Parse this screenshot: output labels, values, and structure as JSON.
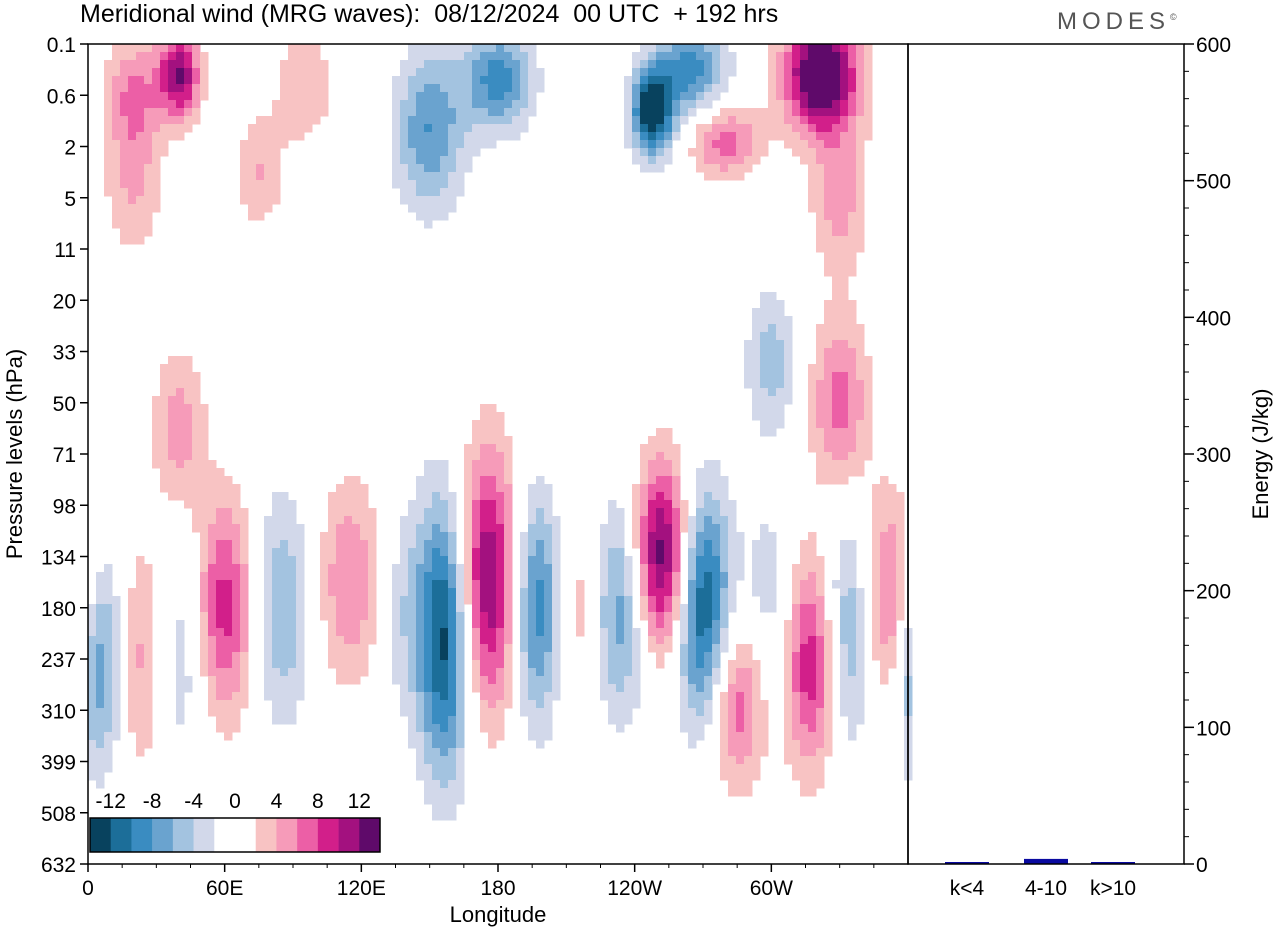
{
  "title": "Meridional wind (MRG waves):  08/12/2024  00 UTC  + 192 hrs",
  "logo": "MODES",
  "chart_data": [
    {
      "type": "heatmap",
      "xlabel": "Longitude",
      "ylabel": "Pressure levels (hPa)",
      "x_ticks": [
        "0",
        "60E",
        "120E",
        "180",
        "120W",
        "60W"
      ],
      "x_tick_longitudes": [
        0,
        60,
        120,
        180,
        240,
        300
      ],
      "xlim": [
        0,
        360
      ],
      "y_ticks": [
        "0.1",
        "0.6",
        "2",
        "5",
        "11",
        "20",
        "33",
        "50",
        "71",
        "98",
        "134",
        "180",
        "237",
        "310",
        "399",
        "508",
        "632"
      ],
      "colorbar": {
        "labels": [
          "-12",
          "-8",
          "-4",
          "0",
          "4",
          "8",
          "12"
        ],
        "colors": [
          "#08425e",
          "#1c6e99",
          "#3a8cc1",
          "#6aa3cf",
          "#a3c3e0",
          "#d2d8ea",
          "#ffffff",
          "#ffffff",
          "#f8c3c3",
          "#f69bb9",
          "#ec5fa6",
          "#d21f8a",
          "#a3117f",
          "#5f0a6a"
        ]
      },
      "features": [
        {
          "lon": 157,
          "level": 11.5,
          "value": -14,
          "sx": 2.4,
          "sy": 1.9
        },
        {
          "lon": 175,
          "level": 10.5,
          "value": 13,
          "sx": 2.8,
          "sy": 1.8
        },
        {
          "lon": 197,
          "level": 11,
          "value": -10,
          "sx": 2.2,
          "sy": 1.6
        },
        {
          "lon": 216,
          "level": 11,
          "value": 4,
          "sx": 2.4,
          "sy": 1.6
        },
        {
          "lon": 233,
          "level": 11,
          "value": -8,
          "sx": 2.5,
          "sy": 1.5
        },
        {
          "lon": 252,
          "level": 10,
          "value": 14,
          "sx": 2.5,
          "sy": 1.3
        },
        {
          "lon": 270,
          "level": 11,
          "value": -13,
          "sx": 2.4,
          "sy": 1.6
        },
        {
          "lon": 285,
          "level": 12.8,
          "value": 8,
          "sx": 2.5,
          "sy": 1.2
        },
        {
          "lon": 300,
          "level": 11,
          "value": -4,
          "sx": 2.5,
          "sy": 1.5
        },
        {
          "lon": 318,
          "level": 12,
          "value": 11,
          "sx": 2.5,
          "sy": 1.5
        },
        {
          "lon": 333,
          "level": 11.5,
          "value": -8,
          "sx": 2.5,
          "sy": 1.6
        },
        {
          "lon": 352,
          "level": 11,
          "value": 9,
          "sx": 2.5,
          "sy": 1.5
        },
        {
          "lon": 5,
          "level": 12,
          "value": -10,
          "sx": 2.5,
          "sy": 1.5
        },
        {
          "lon": 22,
          "level": 12,
          "value": 6,
          "sx": 2.5,
          "sy": 1.6
        },
        {
          "lon": 40,
          "level": 12,
          "value": -4,
          "sx": 2.4,
          "sy": 1.5
        },
        {
          "lon": 60,
          "level": 11,
          "value": 9,
          "sx": 2.5,
          "sy": 1.5
        },
        {
          "lon": 85,
          "level": 11,
          "value": -6,
          "sx": 2.5,
          "sy": 1.6
        },
        {
          "lon": 115,
          "level": 10.5,
          "value": 6,
          "sx": 2.8,
          "sy": 1.4
        },
        {
          "lon": 138,
          "level": 11,
          "value": -3,
          "sx": 2.2,
          "sy": 1.5
        },
        {
          "lon": 40,
          "level": 7.5,
          "value": 5,
          "sx": 2.3,
          "sy": 1.1
        },
        {
          "lon": 300,
          "level": 6.2,
          "value": -5,
          "sx": 2.2,
          "sy": 1.0
        },
        {
          "lon": 330,
          "level": 7,
          "value": 7,
          "sx": 2.5,
          "sy": 1.2
        },
        {
          "lon": 20,
          "level": 1,
          "value": 6,
          "sx": 2.5,
          "sy": 0.8
        },
        {
          "lon": 40,
          "level": 0.6,
          "value": 12,
          "sx": 1.8,
          "sy": 0.6
        },
        {
          "lon": 95,
          "level": 0.8,
          "value": 4,
          "sx": 2.5,
          "sy": 0.8
        },
        {
          "lon": 150,
          "level": 1.7,
          "value": -8,
          "sx": 3.0,
          "sy": 1.1
        },
        {
          "lon": 180,
          "level": 0.7,
          "value": -9,
          "sx": 3.0,
          "sy": 0.7
        },
        {
          "lon": 248,
          "level": 1.3,
          "value": -15,
          "sx": 1.8,
          "sy": 0.6
        },
        {
          "lon": 265,
          "level": 0.5,
          "value": -9,
          "sx": 3.0,
          "sy": 0.6
        },
        {
          "lon": 322,
          "level": 0.6,
          "value": 16,
          "sx": 3.2,
          "sy": 0.8
        },
        {
          "lon": 280,
          "level": 1.9,
          "value": 7,
          "sx": 3.0,
          "sy": 0.5
        },
        {
          "lon": 330,
          "level": 3,
          "value": 5,
          "sx": 2.5,
          "sy": 1.0
        },
        {
          "lon": 20,
          "level": 2.8,
          "value": 4,
          "sx": 2.5,
          "sy": 1.0
        },
        {
          "lon": 75,
          "level": 2.5,
          "value": 4,
          "sx": 2.2,
          "sy": 0.8
        }
      ]
    },
    {
      "type": "bar",
      "categories": [
        "k<4",
        "4-10",
        "k>10"
      ],
      "values": [
        0,
        3,
        0
      ],
      "ylabel": "Energy (J/kg)",
      "ylim": [
        0,
        600
      ],
      "y_ticks": [
        0,
        100,
        200,
        300,
        400,
        500,
        600
      ],
      "bar_color": "#0a0aa0"
    }
  ]
}
